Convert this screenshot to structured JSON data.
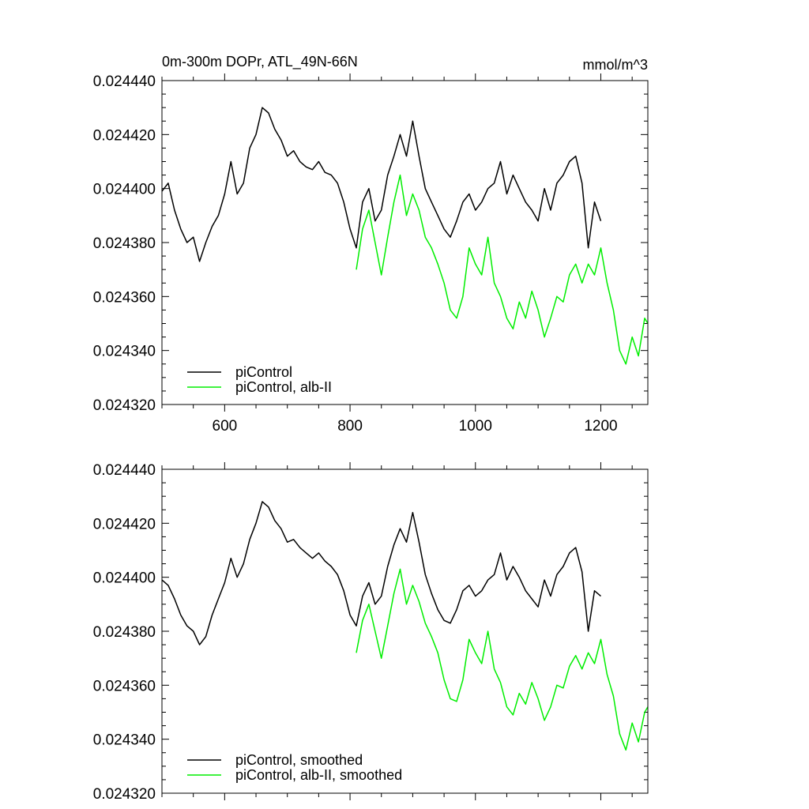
{
  "page": {
    "background": "#ffffff"
  },
  "colors": {
    "control": "#000000",
    "albII": "#00ee00"
  },
  "chart_data": [
    {
      "type": "line",
      "title": "0m-300m DOPr, ATL_49N-66N",
      "units": "mmol/m^3",
      "xlim": [
        500,
        1275
      ],
      "ylim": [
        0.02432,
        0.02444
      ],
      "xticks": [
        600,
        800,
        1000,
        1200
      ],
      "xtick_labels": [
        "600",
        "800",
        "1000",
        "1200"
      ],
      "yticks": [
        0.02432,
        0.02434,
        0.02436,
        0.02438,
        0.0244,
        0.02442,
        0.02444
      ],
      "ytick_labels": [
        "0.024320",
        "0.024340",
        "0.024360",
        "0.024380",
        "0.024400",
        "0.024420",
        "0.024440"
      ],
      "grid": false,
      "legend_position": "bottom-left",
      "series": [
        {
          "name": "piControl",
          "color": "#000000",
          "x": [
            500,
            510,
            520,
            530,
            540,
            550,
            560,
            570,
            580,
            590,
            600,
            610,
            620,
            630,
            640,
            650,
            660,
            670,
            680,
            690,
            700,
            710,
            720,
            730,
            740,
            750,
            760,
            770,
            780,
            790,
            800,
            810,
            820,
            830,
            840,
            850,
            860,
            870,
            880,
            890,
            900,
            910,
            920,
            930,
            940,
            950,
            960,
            970,
            980,
            990,
            1000,
            1010,
            1020,
            1030,
            1040,
            1050,
            1060,
            1070,
            1080,
            1090,
            1100,
            1110,
            1120,
            1130,
            1140,
            1150,
            1160,
            1170,
            1180,
            1190,
            1200
          ],
          "y": [
            0.024399,
            0.024402,
            0.024392,
            0.024385,
            0.02438,
            0.024382,
            0.024373,
            0.02438,
            0.024386,
            0.02439,
            0.024398,
            0.02441,
            0.024398,
            0.024402,
            0.024415,
            0.02442,
            0.02443,
            0.024428,
            0.024422,
            0.024418,
            0.024412,
            0.024414,
            0.02441,
            0.024408,
            0.024407,
            0.02441,
            0.024406,
            0.024405,
            0.024402,
            0.024395,
            0.024385,
            0.024378,
            0.024395,
            0.0244,
            0.024388,
            0.024392,
            0.024405,
            0.024412,
            0.02442,
            0.024412,
            0.024425,
            0.024412,
            0.0244,
            0.024395,
            0.02439,
            0.024385,
            0.024382,
            0.024388,
            0.024395,
            0.024398,
            0.024392,
            0.024395,
            0.0244,
            0.024402,
            0.02441,
            0.024398,
            0.024405,
            0.0244,
            0.024395,
            0.024392,
            0.024388,
            0.0244,
            0.024392,
            0.024402,
            0.024405,
            0.02441,
            0.024412,
            0.024402,
            0.024378,
            0.024395,
            0.024388
          ]
        },
        {
          "name": "piControl, alb-II",
          "color": "#00ee00",
          "x": [
            810,
            820,
            830,
            840,
            850,
            860,
            870,
            880,
            890,
            900,
            910,
            920,
            930,
            940,
            950,
            960,
            970,
            980,
            990,
            1000,
            1010,
            1020,
            1030,
            1040,
            1050,
            1060,
            1070,
            1080,
            1090,
            1100,
            1110,
            1120,
            1130,
            1140,
            1150,
            1160,
            1170,
            1180,
            1190,
            1200,
            1210,
            1220,
            1230,
            1240,
            1250,
            1260,
            1270,
            1275
          ],
          "y": [
            0.02437,
            0.024385,
            0.024392,
            0.02438,
            0.024368,
            0.024382,
            0.024395,
            0.024405,
            0.02439,
            0.024398,
            0.024392,
            0.024382,
            0.024378,
            0.024372,
            0.024365,
            0.024355,
            0.024352,
            0.02436,
            0.024378,
            0.024372,
            0.024368,
            0.024382,
            0.024365,
            0.02436,
            0.024352,
            0.024348,
            0.024358,
            0.024352,
            0.024362,
            0.024355,
            0.024345,
            0.024352,
            0.02436,
            0.024358,
            0.024368,
            0.024372,
            0.024365,
            0.024372,
            0.024368,
            0.024378,
            0.024365,
            0.024355,
            0.02434,
            0.024335,
            0.024345,
            0.024338,
            0.024352,
            0.02435
          ]
        }
      ]
    },
    {
      "type": "line",
      "title": "",
      "xlim": [
        500,
        1275
      ],
      "ylim": [
        0.02432,
        0.02444
      ],
      "xticks": [
        600,
        800,
        1000,
        1200
      ],
      "xtick_labels": [],
      "yticks": [
        0.02432,
        0.02434,
        0.02436,
        0.02438,
        0.0244,
        0.02442,
        0.02444
      ],
      "ytick_labels": [
        "0.024320",
        "0.024340",
        "0.024360",
        "0.024380",
        "0.024400",
        "0.024420",
        "0.024440"
      ],
      "grid": false,
      "legend_position": "bottom-left",
      "series": [
        {
          "name": "piControl, smoothed",
          "color": "#000000",
          "x": [
            500,
            510,
            520,
            530,
            540,
            550,
            560,
            570,
            580,
            590,
            600,
            610,
            620,
            630,
            640,
            650,
            660,
            670,
            680,
            690,
            700,
            710,
            720,
            730,
            740,
            750,
            760,
            770,
            780,
            790,
            800,
            810,
            820,
            830,
            840,
            850,
            860,
            870,
            880,
            890,
            900,
            910,
            920,
            930,
            940,
            950,
            960,
            970,
            980,
            990,
            1000,
            1010,
            1020,
            1030,
            1040,
            1050,
            1060,
            1070,
            1080,
            1090,
            1100,
            1110,
            1120,
            1130,
            1140,
            1150,
            1160,
            1170,
            1180,
            1190,
            1200
          ],
          "y": [
            0.024399,
            0.024397,
            0.024392,
            0.024386,
            0.024382,
            0.02438,
            0.024375,
            0.024378,
            0.024386,
            0.024392,
            0.024398,
            0.024407,
            0.0244,
            0.024405,
            0.024414,
            0.02442,
            0.024428,
            0.024426,
            0.024421,
            0.024418,
            0.024413,
            0.024414,
            0.024411,
            0.024409,
            0.024407,
            0.024409,
            0.024406,
            0.024404,
            0.024401,
            0.024395,
            0.024386,
            0.024382,
            0.024393,
            0.024398,
            0.02439,
            0.024393,
            0.024404,
            0.024412,
            0.024418,
            0.024413,
            0.024424,
            0.024413,
            0.024401,
            0.024394,
            0.024388,
            0.024384,
            0.024383,
            0.024388,
            0.024395,
            0.024397,
            0.024393,
            0.024395,
            0.024399,
            0.024401,
            0.024409,
            0.024399,
            0.024404,
            0.0244,
            0.024395,
            0.024392,
            0.024389,
            0.024399,
            0.024393,
            0.024401,
            0.024404,
            0.024409,
            0.024411,
            0.024402,
            0.02438,
            0.024395,
            0.024393
          ]
        },
        {
          "name": "piControl, alb-II, smoothed",
          "color": "#00ee00",
          "x": [
            810,
            820,
            830,
            840,
            850,
            860,
            870,
            880,
            890,
            900,
            910,
            920,
            930,
            940,
            950,
            960,
            970,
            980,
            990,
            1000,
            1010,
            1020,
            1030,
            1040,
            1050,
            1060,
            1070,
            1080,
            1090,
            1100,
            1110,
            1120,
            1130,
            1140,
            1150,
            1160,
            1170,
            1180,
            1190,
            1200,
            1210,
            1220,
            1230,
            1240,
            1250,
            1260,
            1270,
            1275
          ],
          "y": [
            0.024372,
            0.024384,
            0.02439,
            0.02438,
            0.02437,
            0.024382,
            0.024394,
            0.024403,
            0.02439,
            0.024397,
            0.024391,
            0.024383,
            0.024378,
            0.024372,
            0.024362,
            0.024355,
            0.024354,
            0.024362,
            0.024377,
            0.024372,
            0.024368,
            0.02438,
            0.024366,
            0.024361,
            0.024352,
            0.024349,
            0.024357,
            0.024353,
            0.024361,
            0.024355,
            0.024347,
            0.024352,
            0.02436,
            0.024359,
            0.024367,
            0.024371,
            0.024366,
            0.024372,
            0.024368,
            0.024377,
            0.024364,
            0.024356,
            0.024342,
            0.024336,
            0.024346,
            0.024339,
            0.02435,
            0.024352
          ]
        }
      ]
    }
  ]
}
